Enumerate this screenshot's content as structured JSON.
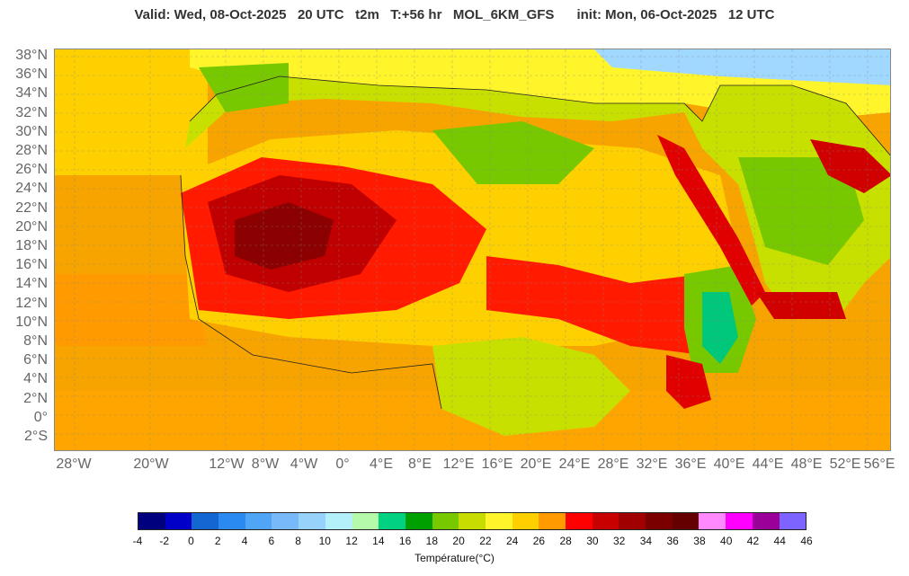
{
  "header": {
    "valid": "Valid: Wed, 08-Oct-2025   20 UTC   t2m   T:+56 hr   MOL_6KM_GFS",
    "init": "init: Mon, 06-Oct-2025   12 UTC"
  },
  "map": {
    "lat_labels": [
      "38°N",
      "36°N",
      "34°N",
      "32°N",
      "30°N",
      "28°N",
      "26°N",
      "24°N",
      "22°N",
      "20°N",
      "18°N",
      "16°N",
      "14°N",
      "12°N",
      "10°N",
      "8°N",
      "6°N",
      "4°N",
      "2°N",
      "0°",
      "2°S"
    ],
    "lon_labels": [
      "28°W",
      "20°W",
      "12°W",
      "8°W",
      "4°W",
      "0°",
      "4°E",
      "8°E",
      "12°E",
      "16°E",
      "20°E",
      "24°E",
      "28°E",
      "32°E",
      "36°E",
      "40°E",
      "44°E",
      "48°E",
      "52°E",
      "56°E"
    ],
    "colors": {
      "sea": "#f7a400",
      "ocean_warm": "#ff9a00",
      "mild": "#c8e000",
      "warm": "#ffd000",
      "yellow": "#fff52a",
      "hot": "#ff1a00",
      "very_hot": "#d00000",
      "extreme": "#8b0000",
      "green": "#78c800",
      "teal": "#00c87a",
      "cool_sea": "#a0d8ff"
    }
  },
  "colorbar": {
    "title": "Température(°C)",
    "ticks": [
      "-4",
      "-2",
      "0",
      "2",
      "4",
      "6",
      "8",
      "10",
      "12",
      "14",
      "16",
      "18",
      "20",
      "22",
      "24",
      "26",
      "28",
      "30",
      "32",
      "34",
      "36",
      "38",
      "40",
      "42",
      "44",
      "46"
    ],
    "colors": [
      "#00007f",
      "#0000c8",
      "#1466d2",
      "#2a8af0",
      "#50a5f5",
      "#78b9fa",
      "#96d2fa",
      "#b4f0fa",
      "#b4faaa",
      "#00d282",
      "#00a000",
      "#78c800",
      "#c8dc00",
      "#fff52a",
      "#ffd000",
      "#ff9a00",
      "#ff0000",
      "#c80000",
      "#a00000",
      "#7a0000",
      "#640000",
      "#ff8aff",
      "#ff00ff",
      "#9b0099",
      "#7d64ff"
    ]
  }
}
